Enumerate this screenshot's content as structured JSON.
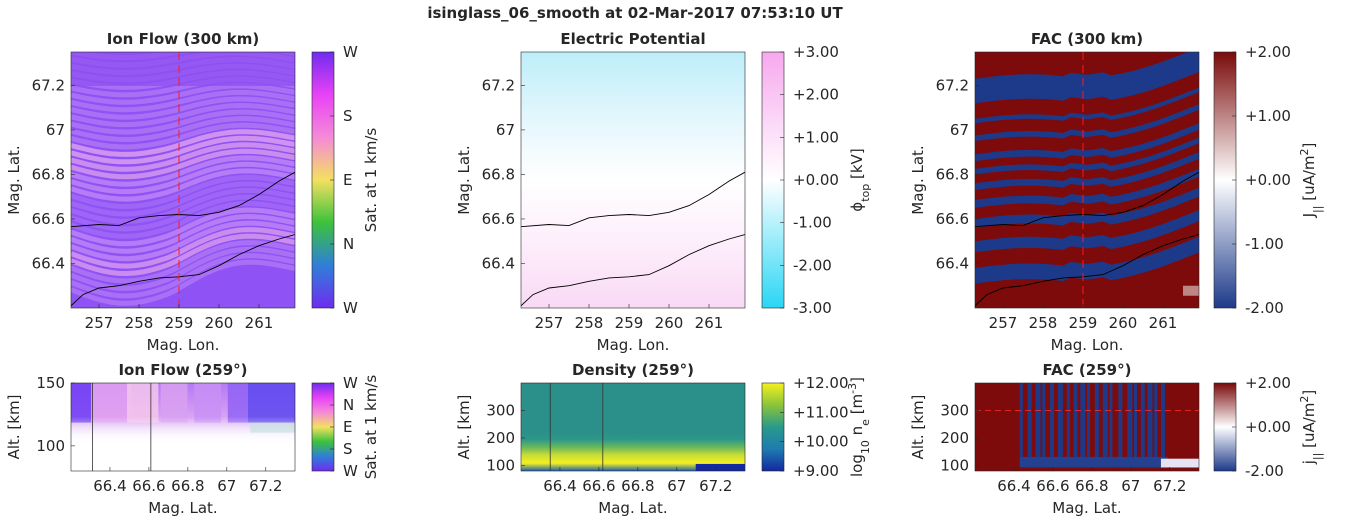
{
  "figure_title": "isinglass_06_smooth at 02-Mar-2017 07:53:10 UT",
  "chart_data": [
    {
      "id": "ionflow300",
      "type": "heatmap",
      "title": "Ion Flow (300 km)",
      "xlabel": "Mag. Lon.",
      "ylabel": "Mag. Lat.",
      "xlim": [
        256.3,
        261.9
      ],
      "ylim": [
        66.2,
        67.35
      ],
      "xticks": [
        257,
        258,
        259,
        260,
        261
      ],
      "yticks": [
        66.4,
        66.6,
        66.8,
        67,
        67.2
      ],
      "yticklabels": [
        "66.4",
        "66.6",
        "66.8",
        "67",
        "67.2"
      ],
      "colorbar": {
        "label": "Sat. at 1 km/s",
        "ticklabels": [
          "W",
          "N",
          "E",
          "S",
          "W"
        ],
        "colors": [
          "#6f2cf0",
          "#2f7fd8",
          "#3cc23c",
          "#f3e060",
          "#f58ad8",
          "#e842f5",
          "#6f2cf0"
        ]
      },
      "marker_x": 259,
      "boundary_upper": {
        "x": [
          256.3,
          257.0,
          257.5,
          258.0,
          258.5,
          259.0,
          259.5,
          260.0,
          260.5,
          261.0,
          261.5,
          261.9
        ],
        "y": [
          66.565,
          66.575,
          66.57,
          66.605,
          66.615,
          66.62,
          66.615,
          66.63,
          66.66,
          66.71,
          66.77,
          66.81
        ]
      },
      "boundary_lower": {
        "x": [
          256.3,
          256.6,
          257.0,
          257.5,
          258.0,
          258.5,
          259.0,
          259.5,
          260.0,
          260.5,
          261.0,
          261.5,
          261.9
        ],
        "y": [
          66.21,
          66.26,
          66.29,
          66.3,
          66.32,
          66.335,
          66.34,
          66.35,
          66.39,
          66.44,
          66.48,
          66.51,
          66.53
        ]
      }
    },
    {
      "id": "potential",
      "type": "heatmap",
      "title": "Electric Potential",
      "xlabel": "Mag. Lon.",
      "ylabel": "Mag. Lat.",
      "xlim": [
        256.3,
        261.9
      ],
      "ylim": [
        66.2,
        67.35
      ],
      "xticks": [
        257,
        258,
        259,
        260,
        261
      ],
      "yticks": [
        66.4,
        66.6,
        66.8,
        67,
        67.2
      ],
      "yticklabels": [
        "66.4",
        "66.6",
        "66.8",
        "67",
        "67.2"
      ],
      "colorbar": {
        "label": "ϕ",
        "label_sub": "top",
        "label_suffix": " [kV]",
        "ticklabels": [
          "-3.00",
          "-2.00",
          "-1.00",
          "+0.00",
          "+1.00",
          "+2.00",
          "+3.00"
        ],
        "colors": [
          "#2ad6f5",
          "#ffffff",
          "#f7a8ee"
        ]
      },
      "boundary_upper": {
        "x": [
          256.3,
          257.0,
          257.5,
          258.0,
          258.5,
          259.0,
          259.5,
          260.0,
          260.5,
          261.0,
          261.5,
          261.9
        ],
        "y": [
          66.565,
          66.575,
          66.57,
          66.605,
          66.615,
          66.62,
          66.615,
          66.63,
          66.66,
          66.71,
          66.77,
          66.81
        ]
      },
      "boundary_lower": {
        "x": [
          256.3,
          256.6,
          257.0,
          257.5,
          258.0,
          258.5,
          259.0,
          259.5,
          260.0,
          260.5,
          261.0,
          261.5,
          261.9
        ],
        "y": [
          66.21,
          66.26,
          66.29,
          66.3,
          66.32,
          66.335,
          66.34,
          66.35,
          66.39,
          66.44,
          66.48,
          66.51,
          66.53
        ]
      }
    },
    {
      "id": "fac300",
      "type": "heatmap",
      "title": "FAC (300 km)",
      "xlabel": "Mag. Lon.",
      "ylabel": "Mag. Lat.",
      "xlim": [
        256.3,
        261.9
      ],
      "ylim": [
        66.2,
        67.35
      ],
      "xticks": [
        257,
        258,
        259,
        260,
        261
      ],
      "yticks": [
        66.4,
        66.6,
        66.8,
        67,
        67.2
      ],
      "yticklabels": [
        "66.4",
        "66.6",
        "66.8",
        "67",
        "67.2"
      ],
      "colorbar": {
        "label": "J",
        "label_sub": "||",
        "label_suffix": " [uA/m",
        "label_sup": "2",
        "label_end": "]",
        "ticklabels": [
          "-2.00",
          "-1.00",
          "+0.00",
          "+1.00",
          "+2.00"
        ],
        "colors": [
          "#1d3a8a",
          "#ffffff",
          "#7a0a0a"
        ]
      },
      "marker_x": 259,
      "boundary_upper": {
        "x": [
          256.3,
          257.0,
          257.5,
          258.0,
          258.5,
          259.0,
          259.5,
          260.0,
          260.5,
          261.0,
          261.5,
          261.9
        ],
        "y": [
          66.565,
          66.575,
          66.57,
          66.605,
          66.615,
          66.62,
          66.615,
          66.63,
          66.66,
          66.71,
          66.77,
          66.81
        ]
      },
      "boundary_lower": {
        "x": [
          256.3,
          256.6,
          257.0,
          257.5,
          258.0,
          258.5,
          259.0,
          259.5,
          260.0,
          260.5,
          261.0,
          261.5,
          261.9
        ],
        "y": [
          66.21,
          66.26,
          66.29,
          66.3,
          66.32,
          66.335,
          66.34,
          66.35,
          66.39,
          66.44,
          66.48,
          66.51,
          66.53
        ]
      }
    },
    {
      "id": "ionflow259",
      "type": "heatmap",
      "title": "Ion Flow (259°)",
      "xlabel": "Mag. Lat.",
      "ylabel": "Alt. [km]",
      "xlim": [
        66.2,
        67.35
      ],
      "ylim": [
        80,
        150
      ],
      "xticks": [
        66.4,
        66.6,
        66.8,
        67,
        67.2
      ],
      "xticklabels": [
        "66.4",
        "66.6",
        "66.8",
        "67",
        "67.2"
      ],
      "yticks": [
        100,
        150
      ],
      "colorbar": {
        "label": "Sat. at 1 km/s",
        "ticklabels": [
          "W",
          "S",
          "E",
          "N",
          "W"
        ],
        "colors": [
          "#6f2cf0",
          "#2f7fd8",
          "#3cc23c",
          "#f3e060",
          "#f58ad8",
          "#e842f5",
          "#6f2cf0"
        ]
      },
      "vlines": [
        66.31,
        66.61
      ]
    },
    {
      "id": "density259",
      "type": "heatmap",
      "title": "Density (259°)",
      "xlabel": "Mag. Lat.",
      "ylabel": "Alt. [km]",
      "xlim": [
        66.2,
        67.35
      ],
      "ylim": [
        80,
        400
      ],
      "xticks": [
        66.4,
        66.6,
        66.8,
        67,
        67.2
      ],
      "xticklabels": [
        "66.4",
        "66.6",
        "66.8",
        "67",
        "67.2"
      ],
      "yticks": [
        100,
        200,
        300
      ],
      "colorbar": {
        "label": "log",
        "label_sub": "10",
        "label_suffix": " n",
        "label_sub2": "e",
        "label_suffix2": " [m",
        "label_sup": "-3",
        "label_end": "]",
        "ticklabels": [
          "+9.00",
          "+10.00",
          "+11.00",
          "+12.00"
        ],
        "colors": [
          "#1428a0",
          "#1f7bb0",
          "#2a9a8a",
          "#8bc43a",
          "#f5f020"
        ]
      },
      "vlines": [
        66.35,
        66.62
      ]
    },
    {
      "id": "fac259",
      "type": "heatmap",
      "title": "FAC (259°)",
      "xlabel": "Mag. Lat.",
      "ylabel": "Alt. [km]",
      "xlim": [
        66.2,
        67.35
      ],
      "ylim": [
        80,
        400
      ],
      "xticks": [
        66.4,
        66.6,
        66.8,
        67,
        67.2
      ],
      "xticklabels": [
        "66.4",
        "66.6",
        "66.8",
        "67",
        "67.2"
      ],
      "yticks": [
        100,
        200,
        300
      ],
      "colorbar": {
        "label": "j",
        "label_sub": "||",
        "label_suffix": " [uA/m",
        "label_sup": "2",
        "label_end": "]",
        "ticklabels": [
          "-2.00",
          "+0.00",
          "+2.00"
        ],
        "colors": [
          "#1d3a8a",
          "#ffffff",
          "#7a0a0a"
        ]
      },
      "hline_y": 300
    }
  ]
}
